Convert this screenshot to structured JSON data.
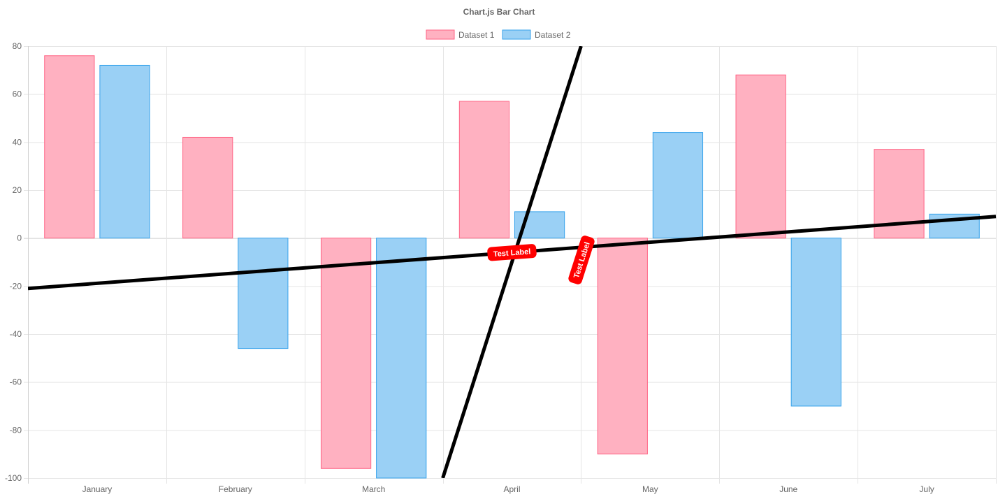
{
  "chart_data": {
    "type": "bar",
    "title": "Chart.js Bar Chart",
    "categories": [
      "January",
      "February",
      "March",
      "April",
      "May",
      "June",
      "July"
    ],
    "series": [
      {
        "name": "Dataset 1",
        "values": [
          76,
          42,
          -96,
          57,
          -90,
          68,
          37
        ],
        "fill": "#ffb1c1",
        "stroke": "#ff6384"
      },
      {
        "name": "Dataset 2",
        "values": [
          72,
          -46,
          -100,
          11,
          44,
          -70,
          10
        ],
        "fill": "#9ad0f5",
        "stroke": "#36a2eb"
      }
    ],
    "ylim": [
      -100,
      80
    ],
    "yticks": [
      "80",
      "60",
      "40",
      "20",
      "0",
      "-20",
      "-40",
      "-60",
      "-80",
      "-100"
    ],
    "xlabel": "",
    "ylabel": "",
    "grid": true,
    "legend_position": "top",
    "annotations": [
      {
        "type": "line",
        "label": "Test Label",
        "start": [
          -0.5,
          -21
        ],
        "end": [
          6.5,
          9
        ],
        "color": "#000000",
        "label_color": "#ff0000"
      },
      {
        "type": "line",
        "label": "Test Label",
        "start": [
          2.5,
          -100
        ],
        "end": [
          3.5,
          80
        ],
        "color": "#000000",
        "label_color": "#ff0000"
      }
    ]
  }
}
